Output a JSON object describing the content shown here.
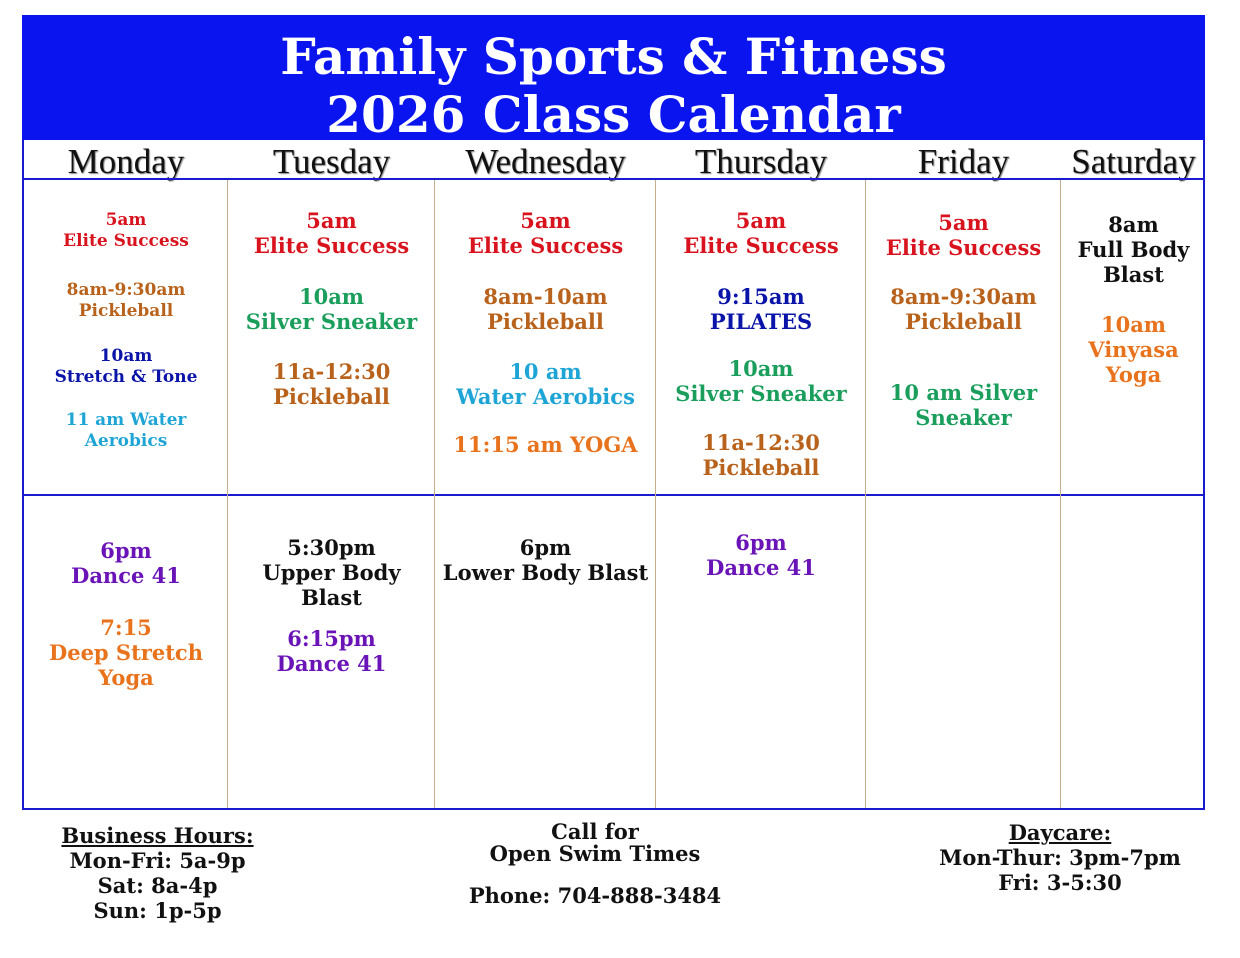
{
  "header": {
    "title": "Family Sports & Fitness",
    "subtitle": "2026 Class Calendar",
    "background": "#0a14ee"
  },
  "days": [
    "Monday",
    "Tuesday",
    "Wednesday",
    "Thursday",
    "Friday",
    "Saturday"
  ],
  "colors": {
    "red": "#d9131e",
    "brown": "#b8621b",
    "green": "#1a9e5c",
    "navy": "#0a14a8",
    "cyan": "#1ea5d6",
    "orange": "#e8731c",
    "purple": "#6a14b8",
    "black": "#111111"
  },
  "morning": [
    [
      {
        "lines": [
          "5am",
          "Elite Success"
        ],
        "color": "red"
      },
      {
        "lines": [
          "8am-9:30am",
          "Pickleball"
        ],
        "color": "brown"
      },
      {
        "lines": [
          "10am",
          "Stretch & Tone"
        ],
        "color": "navy"
      },
      {
        "lines": [
          "11 am Water",
          "Aerobics"
        ],
        "color": "cyan"
      }
    ],
    [
      {
        "lines": [
          "5am",
          "Elite Success"
        ],
        "color": "red"
      },
      {
        "lines": [
          "10am",
          "Silver Sneaker"
        ],
        "color": "green"
      },
      {
        "lines": [
          "11a-12:30",
          "Pickleball"
        ],
        "color": "brown"
      }
    ],
    [
      {
        "lines": [
          "5am",
          "Elite Success"
        ],
        "color": "red"
      },
      {
        "lines": [
          "8am-10am",
          "Pickleball"
        ],
        "color": "brown"
      },
      {
        "lines": [
          "10 am",
          "Water Aerobics"
        ],
        "color": "cyan"
      },
      {
        "lines": [
          "11:15 am YOGA"
        ],
        "color": "orange"
      }
    ],
    [
      {
        "lines": [
          "5am",
          "Elite Success"
        ],
        "color": "red"
      },
      {
        "lines": [
          "9:15am",
          "PILATES"
        ],
        "color": "navy"
      },
      {
        "lines": [
          "10am",
          "Silver Sneaker"
        ],
        "color": "green"
      },
      {
        "lines": [
          "11a-12:30",
          "Pickleball"
        ],
        "color": "brown"
      }
    ],
    [
      {
        "lines": [
          "5am",
          "Elite Success"
        ],
        "color": "red"
      },
      {
        "lines": [
          "8am-9:30am",
          "Pickleball"
        ],
        "color": "brown"
      },
      {
        "lines": [
          "10 am Silver",
          "Sneaker"
        ],
        "color": "green"
      }
    ],
    [
      {
        "lines": [
          "8am",
          "Full Body",
          "Blast"
        ],
        "color": "black"
      },
      {
        "lines": [
          "10am",
          "Vinyasa",
          "Yoga"
        ],
        "color": "orange"
      }
    ]
  ],
  "evening": [
    [
      {
        "lines": [
          "6pm",
          "Dance 41"
        ],
        "color": "purple"
      },
      {
        "lines": [
          "7:15",
          "Deep Stretch",
          "Yoga"
        ],
        "color": "orange"
      }
    ],
    [
      {
        "lines": [
          "5:30pm",
          "Upper Body",
          "Blast"
        ],
        "color": "black"
      },
      {
        "lines": [
          "6:15pm",
          "Dance 41"
        ],
        "color": "purple"
      }
    ],
    [
      {
        "lines": [
          "6pm",
          "Lower Body Blast"
        ],
        "color": "black"
      }
    ],
    [
      {
        "lines": [
          "6pm",
          "Dance 41"
        ],
        "color": "purple"
      }
    ],
    [],
    []
  ],
  "footer": {
    "business": {
      "title": "Business Hours:",
      "lines": [
        "Mon-Fri: 5a-9p",
        "Sat: 8a-4p",
        "Sun: 1p-5p"
      ]
    },
    "swim": {
      "lines": [
        "Call for",
        "Open Swim Times"
      ],
      "phone": "Phone: 704-888-3484"
    },
    "daycare": {
      "title": "Daycare:",
      "lines": [
        "Mon-Thur: 3pm-7pm",
        "Fri: 3-5:30"
      ]
    }
  }
}
